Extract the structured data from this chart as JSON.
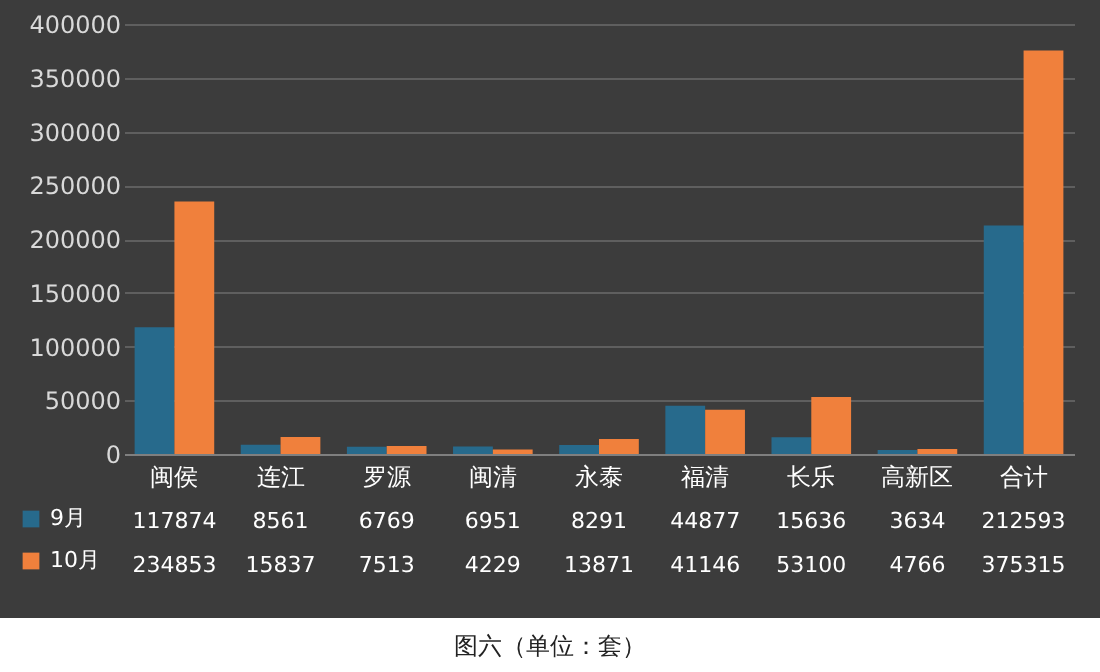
{
  "chart_data": {
    "type": "bar",
    "title": "图六（单位：套）",
    "categories": [
      "闽侯",
      "连江",
      "罗源",
      "闽清",
      "永泰",
      "福清",
      "长乐",
      "高新区",
      "合计"
    ],
    "series": [
      {
        "name": "9月",
        "color": "#276a8c",
        "values": [
          117874,
          8561,
          6769,
          6951,
          8291,
          44877,
          15636,
          3634,
          212593
        ]
      },
      {
        "name": "10月",
        "color": "#f0803c",
        "values": [
          234853,
          15837,
          7513,
          4229,
          13871,
          41146,
          53100,
          4766,
          375315
        ]
      }
    ],
    "ylim": [
      0,
      400000
    ],
    "yticks": [
      0,
      50000,
      100000,
      150000,
      200000,
      250000,
      300000,
      350000,
      400000
    ],
    "grid": "y",
    "legend": "bottom left",
    "data_labels": true
  }
}
